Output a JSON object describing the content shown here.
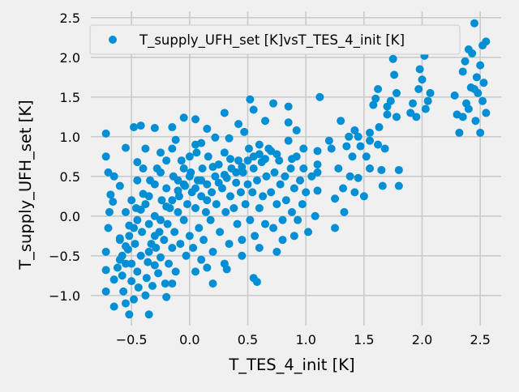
{
  "chart_data": {
    "type": "scatter",
    "xlabel": "T_TES_4_init [K]",
    "ylabel": "T_supply_UFH_set [K]",
    "xlim": [
      -0.85,
      2.68
    ],
    "ylim": [
      -1.38,
      2.58
    ],
    "xticks": [
      "−0.5",
      "0.0",
      "0.5",
      "1.0",
      "1.5",
      "2.0",
      "2.5"
    ],
    "xtick_values": [
      -0.5,
      0.0,
      0.5,
      1.0,
      1.5,
      2.0,
      2.5
    ],
    "yticks": [
      "−1.0",
      "−0.5",
      "0.0",
      "0.5",
      "1.0",
      "1.5",
      "2.0",
      "2.5"
    ],
    "ytick_values": [
      -1.0,
      -0.5,
      0.0,
      0.5,
      1.0,
      1.5,
      2.0,
      2.5
    ],
    "grid": true,
    "legend_position": "top-right",
    "marker_color": "#008fd5",
    "series": [
      {
        "name": "T_supply_UFH_set [K]vsT_TES_4_init [K]",
        "points": [
          [
            -0.72,
            1.04
          ],
          [
            -0.72,
            0.75
          ],
          [
            -0.7,
            0.55
          ],
          [
            -0.65,
            0.5
          ],
          [
            -0.68,
            0.27
          ],
          [
            -0.55,
            0.86
          ],
          [
            -0.48,
            1.12
          ],
          [
            -0.42,
            1.14
          ],
          [
            -0.3,
            1.11
          ],
          [
            -0.15,
            1.12
          ],
          [
            -0.05,
            1.24
          ],
          [
            0.05,
            1.22
          ],
          [
            0.15,
            1.1
          ],
          [
            0.3,
            1.3
          ],
          [
            0.42,
            1.16
          ],
          [
            0.52,
            1.47
          ],
          [
            0.55,
            1.34
          ],
          [
            0.65,
            1.2
          ],
          [
            0.72,
            1.42
          ],
          [
            0.85,
            1.38
          ],
          [
            0.92,
            1.08
          ],
          [
            0.85,
            1.18
          ],
          [
            -0.6,
            0.38
          ],
          [
            -0.45,
            0.68
          ],
          [
            -0.38,
            0.85
          ],
          [
            -0.25,
            0.8
          ],
          [
            -0.12,
            0.96
          ],
          [
            0.1,
            0.92
          ],
          [
            0.22,
            0.99
          ],
          [
            0.34,
            0.98
          ],
          [
            0.47,
            1.06
          ],
          [
            0.6,
            0.9
          ],
          [
            0.75,
            0.78
          ],
          [
            0.88,
            0.72
          ],
          [
            0.98,
            0.6
          ],
          [
            1.1,
            0.82
          ],
          [
            1.1,
            0.55
          ],
          [
            1.1,
            0.32
          ],
          [
            1.12,
            1.5
          ],
          [
            0.55,
            -0.78
          ],
          [
            0.58,
            -0.83
          ],
          [
            0.32,
            -0.67
          ],
          [
            -0.35,
            -1.24
          ],
          [
            -0.52,
            -1.24
          ],
          [
            -0.65,
            -1.14
          ],
          [
            -0.2,
            -1.02
          ],
          [
            -0.15,
            -0.85
          ],
          [
            0.05,
            -0.7
          ],
          [
            0.1,
            -0.55
          ],
          [
            -0.72,
            -0.95
          ],
          [
            -0.72,
            -0.68
          ],
          [
            -0.72,
            -0.45
          ],
          [
            -0.7,
            -0.15
          ],
          [
            -0.69,
            0.05
          ],
          [
            -0.66,
            0.18
          ],
          [
            -0.6,
            -0.28
          ],
          [
            -0.6,
            -0.55
          ],
          [
            -0.58,
            -0.75
          ],
          [
            -0.57,
            -0.95
          ],
          [
            -0.55,
            -1.1
          ],
          [
            -0.55,
            -0.6
          ],
          [
            -0.53,
            -0.42
          ],
          [
            -0.52,
            -0.12
          ],
          [
            -0.5,
            -0.82
          ],
          [
            -0.5,
            -0.6
          ],
          [
            -0.48,
            -1.05
          ],
          [
            -0.47,
            -0.35
          ],
          [
            -0.46,
            0.1
          ],
          [
            -0.45,
            -0.7
          ],
          [
            -0.44,
            -0.9
          ],
          [
            -0.42,
            -0.5
          ],
          [
            -0.41,
            -0.2
          ],
          [
            -0.4,
            0.28
          ],
          [
            -0.38,
            -1.0
          ],
          [
            -0.37,
            -0.78
          ],
          [
            -0.36,
            -0.58
          ],
          [
            -0.35,
            -0.1
          ],
          [
            -0.34,
            0.45
          ],
          [
            -0.33,
            -0.35
          ],
          [
            -0.32,
            -0.88
          ],
          [
            -0.3,
            -0.62
          ],
          [
            -0.3,
            0.0
          ],
          [
            -0.29,
            -0.4
          ],
          [
            -0.28,
            0.6
          ],
          [
            -0.27,
            -0.72
          ],
          [
            -0.26,
            -0.2
          ],
          [
            -0.25,
            -0.52
          ],
          [
            -0.24,
            0.2
          ],
          [
            -0.22,
            -0.3
          ],
          [
            -0.21,
            -0.85
          ],
          [
            -0.2,
            0.35
          ],
          [
            -0.19,
            -0.1
          ],
          [
            -0.18,
            -0.6
          ],
          [
            -0.17,
            0.1
          ],
          [
            -0.15,
            -0.4
          ],
          [
            -0.14,
            0.5
          ],
          [
            -0.13,
            -0.2
          ],
          [
            -0.12,
            -0.7
          ],
          [
            -0.1,
            0.05
          ],
          [
            -0.09,
            0.25
          ],
          [
            -0.08,
            -0.35
          ],
          [
            -0.07,
            0.7
          ],
          [
            -0.05,
            -0.05
          ],
          [
            -0.04,
            0.38
          ],
          [
            -0.03,
            -0.5
          ],
          [
            -0.02,
            0.15
          ],
          [
            0.0,
            -0.25
          ],
          [
            0.01,
            0.55
          ],
          [
            0.02,
            0.3
          ],
          [
            0.03,
            -0.4
          ],
          [
            0.05,
            0.1
          ],
          [
            0.06,
            0.8
          ],
          [
            0.07,
            0.45
          ],
          [
            0.08,
            -0.15
          ],
          [
            0.1,
            0.25
          ],
          [
            0.11,
            0.6
          ],
          [
            0.12,
            -0.3
          ],
          [
            0.14,
            0.05
          ],
          [
            0.15,
            0.4
          ],
          [
            0.16,
            0.75
          ],
          [
            0.18,
            -0.05
          ],
          [
            0.19,
            0.3
          ],
          [
            0.2,
            -0.45
          ],
          [
            0.22,
            0.5
          ],
          [
            0.23,
            0.15
          ],
          [
            0.25,
            0.65
          ],
          [
            0.26,
            -0.2
          ],
          [
            0.28,
            0.35
          ],
          [
            0.3,
            0.8
          ],
          [
            0.31,
            0.05
          ],
          [
            0.32,
            0.48
          ],
          [
            0.34,
            -0.35
          ],
          [
            0.35,
            0.25
          ],
          [
            0.36,
            0.6
          ],
          [
            0.38,
            0.1
          ],
          [
            0.4,
            0.42
          ],
          [
            0.41,
            -0.1
          ],
          [
            0.42,
            0.7
          ],
          [
            0.44,
            0.3
          ],
          [
            0.45,
            -0.3
          ],
          [
            0.46,
            0.55
          ],
          [
            0.48,
            0.15
          ],
          [
            0.5,
            0.4
          ],
          [
            0.51,
            0.85
          ],
          [
            0.52,
            -0.05
          ],
          [
            0.54,
            0.3
          ],
          [
            0.55,
            0.6
          ],
          [
            0.56,
            -0.25
          ],
          [
            0.58,
            0.45
          ],
          [
            0.6,
            0.1
          ],
          [
            0.62,
            0.68
          ],
          [
            0.63,
            0.25
          ],
          [
            0.65,
            -0.1
          ],
          [
            0.66,
            0.5
          ],
          [
            0.68,
            0.85
          ],
          [
            0.7,
            0.3
          ],
          [
            0.72,
            -0.15
          ],
          [
            0.73,
            0.55
          ],
          [
            0.75,
            0.15
          ],
          [
            0.77,
            0.7
          ],
          [
            0.78,
            0.4
          ],
          [
            0.8,
            -0.3
          ],
          [
            0.82,
            0.5
          ],
          [
            0.83,
            0.2
          ],
          [
            0.85,
            0.95
          ],
          [
            0.87,
            0.6
          ],
          [
            0.88,
            0.05
          ],
          [
            0.9,
            0.35
          ],
          [
            0.92,
            0.75
          ],
          [
            0.93,
            -0.05
          ],
          [
            0.95,
            0.45
          ],
          [
            0.97,
            0.15
          ],
          [
            0.98,
            0.85
          ],
          [
            1.0,
            0.3
          ],
          [
            1.02,
            -0.2
          ],
          [
            1.05,
            0.5
          ],
          [
            1.08,
            0.0
          ],
          [
            1.1,
            0.65
          ],
          [
            0.9,
            -0.25
          ],
          [
            0.8,
            -0.05
          ],
          [
            0.75,
            -0.45
          ],
          [
            0.6,
            -0.4
          ],
          [
            0.45,
            -0.5
          ],
          [
            0.3,
            -0.6
          ],
          [
            0.15,
            -0.65
          ],
          [
            0.2,
            -0.85
          ],
          [
            -0.6,
            -0.3
          ],
          [
            -0.55,
            0.05
          ],
          [
            -0.5,
            0.2
          ],
          [
            -0.45,
            0.45
          ],
          [
            -0.4,
            0.6
          ],
          [
            -0.35,
            0.25
          ],
          [
            -0.3,
            0.4
          ],
          [
            -0.25,
            0.55
          ],
          [
            -0.2,
            0.7
          ],
          [
            -0.15,
            0.85
          ],
          [
            -0.1,
            0.45
          ],
          [
            -0.05,
            0.6
          ],
          [
            0.0,
            0.75
          ],
          [
            0.05,
            0.9
          ],
          [
            -0.65,
            -0.8
          ],
          [
            -0.62,
            -0.65
          ],
          [
            -0.58,
            -0.5
          ],
          [
            -0.55,
            -0.38
          ],
          [
            -0.52,
            -0.25
          ],
          [
            -0.48,
            -0.15
          ],
          [
            -0.45,
            -0.05
          ],
          [
            -0.42,
            0.08
          ],
          [
            -0.38,
            0.15
          ],
          [
            -0.35,
            -0.45
          ],
          [
            -0.3,
            -0.25
          ],
          [
            -0.25,
            -0.05
          ],
          [
            -0.2,
            0.12
          ],
          [
            -0.15,
            0.2
          ],
          [
            -0.1,
            0.32
          ],
          [
            -0.05,
            0.4
          ],
          [
            0.0,
            0.5
          ],
          [
            0.05,
            0.35
          ],
          [
            0.1,
            0.45
          ],
          [
            0.15,
            0.2
          ],
          [
            0.2,
            0.62
          ],
          [
            0.25,
            0.42
          ],
          [
            0.3,
            0.52
          ],
          [
            0.35,
            0.72
          ],
          [
            0.4,
            0.55
          ],
          [
            0.45,
            0.62
          ],
          [
            0.5,
            0.7
          ],
          [
            0.55,
            0.75
          ],
          [
            0.6,
            0.78
          ],
          [
            0.65,
            0.72
          ],
          [
            0.7,
            0.82
          ],
          [
            1.2,
            0.95
          ],
          [
            1.22,
            0.85
          ],
          [
            1.25,
            -0.15
          ],
          [
            1.25,
            0.22
          ],
          [
            1.28,
            0.6
          ],
          [
            1.3,
            1.2
          ],
          [
            1.32,
            0.35
          ],
          [
            1.33,
            0.05
          ],
          [
            1.35,
            0.88
          ],
          [
            1.37,
            1.0
          ],
          [
            1.38,
            0.5
          ],
          [
            1.4,
            0.75
          ],
          [
            1.42,
            1.08
          ],
          [
            1.45,
            1.0
          ],
          [
            1.45,
            0.48
          ],
          [
            1.47,
            0.88
          ],
          [
            1.5,
            0.25
          ],
          [
            1.52,
            0.75
          ],
          [
            1.55,
            0.95
          ],
          [
            1.55,
            1.05
          ],
          [
            1.58,
            1.4
          ],
          [
            1.6,
            1.48
          ],
          [
            1.62,
            1.6
          ],
          [
            1.63,
            1.12
          ],
          [
            1.65,
            0.58
          ],
          [
            1.66,
            0.38
          ],
          [
            1.68,
            0.85
          ],
          [
            1.7,
            1.38
          ],
          [
            1.7,
            1.28
          ],
          [
            1.73,
            1.45
          ],
          [
            1.75,
            1.98
          ],
          [
            1.76,
            1.78
          ],
          [
            1.78,
            1.55
          ],
          [
            1.78,
            1.25
          ],
          [
            1.8,
            0.58
          ],
          [
            1.8,
            0.38
          ],
          [
            1.62,
            0.9
          ],
          [
            1.55,
            0.6
          ],
          [
            1.42,
            0.3
          ],
          [
            1.9,
            1.3
          ],
          [
            1.92,
            1.42
          ],
          [
            1.95,
            1.25
          ],
          [
            1.97,
            1.6
          ],
          [
            1.98,
            1.85
          ],
          [
            2.0,
            1.72
          ],
          [
            2.02,
            2.02
          ],
          [
            2.03,
            1.35
          ],
          [
            2.05,
            1.45
          ],
          [
            2.07,
            1.55
          ],
          [
            2.1,
            2.3
          ],
          [
            2.08,
            2.22
          ],
          [
            2.05,
            2.18
          ],
          [
            2.0,
            2.2
          ],
          [
            1.98,
            2.18
          ],
          [
            1.95,
            2.15
          ],
          [
            2.02,
            2.25
          ],
          [
            2.06,
            2.28
          ],
          [
            1.68,
            2.2
          ],
          [
            1.72,
            2.25
          ],
          [
            1.78,
            2.12
          ],
          [
            2.28,
            1.52
          ],
          [
            2.3,
            1.28
          ],
          [
            2.32,
            1.05
          ],
          [
            2.35,
            1.82
          ],
          [
            2.37,
            1.95
          ],
          [
            2.38,
            1.42
          ],
          [
            2.4,
            1.35
          ],
          [
            2.42,
            1.62
          ],
          [
            2.43,
            2.05
          ],
          [
            2.45,
            2.43
          ],
          [
            2.46,
            1.2
          ],
          [
            2.47,
            1.75
          ],
          [
            2.48,
            1.55
          ],
          [
            2.5,
            1.9
          ],
          [
            2.5,
            1.05
          ],
          [
            2.52,
            2.15
          ],
          [
            2.53,
            1.68
          ],
          [
            2.55,
            1.3
          ],
          [
            2.55,
            2.2
          ],
          [
            2.4,
            2.1
          ],
          [
            2.35,
            1.25
          ],
          [
            2.45,
            1.6
          ],
          [
            2.52,
            1.45
          ]
        ]
      }
    ]
  }
}
